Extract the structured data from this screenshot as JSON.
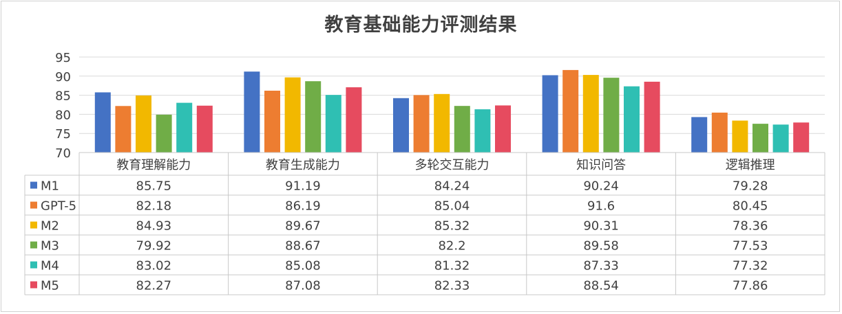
{
  "chart_data": {
    "type": "bar",
    "title": "教育基础能力评测结果",
    "categories": [
      "教育理解能力",
      "教育生成能力",
      "多轮交互能力",
      "知识问答",
      "逻辑推理"
    ],
    "ylim": [
      70,
      95
    ],
    "yticks": [
      70,
      75,
      80,
      85,
      90,
      95
    ],
    "grid": true,
    "legend": "data-table",
    "series": [
      {
        "name": "M1",
        "color": "#4472c4",
        "values": [
          85.75,
          91.19,
          84.24,
          90.24,
          79.28
        ]
      },
      {
        "name": "GPT-5",
        "color": "#ed7d31",
        "values": [
          82.18,
          86.19,
          85.04,
          91.6,
          80.45
        ]
      },
      {
        "name": "M2",
        "color": "#f2b800",
        "values": [
          84.93,
          89.67,
          85.32,
          90.31,
          78.36
        ]
      },
      {
        "name": "M3",
        "color": "#70ad47",
        "values": [
          79.92,
          88.67,
          82.2,
          89.58,
          77.53
        ]
      },
      {
        "name": "M4",
        "color": "#2fbfb3",
        "values": [
          83.02,
          85.08,
          81.32,
          87.33,
          77.32
        ]
      },
      {
        "name": "M5",
        "color": "#e64b5f",
        "values": [
          82.27,
          87.08,
          82.33,
          88.54,
          77.86
        ]
      }
    ],
    "table_values": [
      [
        "85.75",
        "91.19",
        "84.24",
        "90.24",
        "79.28"
      ],
      [
        "82.18",
        "86.19",
        "85.04",
        "91.6",
        "80.45"
      ],
      [
        "84.93",
        "89.67",
        "85.32",
        "90.31",
        "78.36"
      ],
      [
        "79.92",
        "88.67",
        "82.2",
        "89.58",
        "77.53"
      ],
      [
        "83.02",
        "85.08",
        "81.32",
        "87.33",
        "77.32"
      ],
      [
        "82.27",
        "87.08",
        "82.33",
        "88.54",
        "77.86"
      ]
    ]
  }
}
